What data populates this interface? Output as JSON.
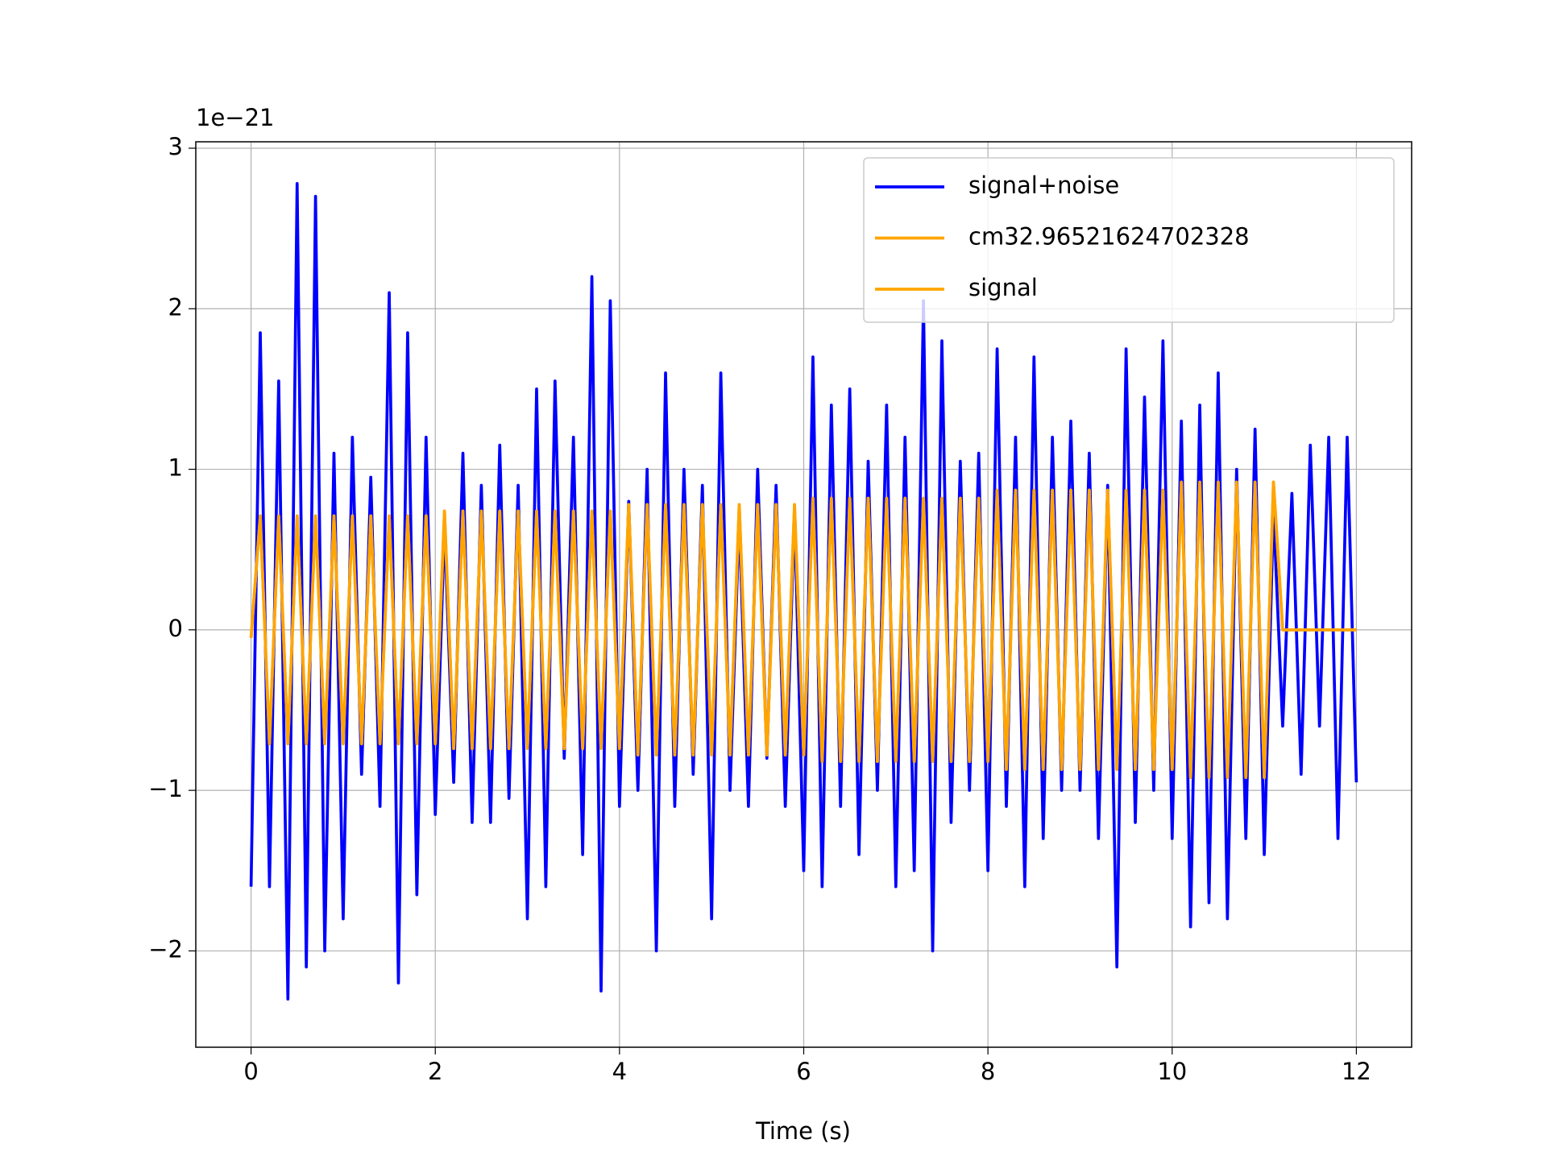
{
  "chart_data": {
    "type": "line",
    "offset_text": "1e−21",
    "xlabel": "Time (s)",
    "x": [
      0,
      0.1,
      0.2,
      0.3,
      0.4,
      0.5,
      0.6,
      0.7,
      0.8,
      0.9,
      1,
      1.1,
      1.2,
      1.3,
      1.4,
      1.5,
      1.6,
      1.7,
      1.8,
      1.9,
      2,
      2.1,
      2.2,
      2.3,
      2.4,
      2.5,
      2.6,
      2.7,
      2.8,
      2.9,
      3,
      3.1,
      3.2,
      3.3,
      3.4,
      3.5,
      3.6,
      3.7,
      3.8,
      3.9,
      4,
      4.1,
      4.2,
      4.3,
      4.4,
      4.5,
      4.6,
      4.7,
      4.8,
      4.9,
      5,
      5.1,
      5.2,
      5.3,
      5.4,
      5.5,
      5.6,
      5.7,
      5.8,
      5.9,
      6,
      6.1,
      6.2,
      6.3,
      6.4,
      6.5,
      6.6,
      6.7,
      6.8,
      6.9,
      7,
      7.1,
      7.2,
      7.3,
      7.4,
      7.5,
      7.6,
      7.7,
      7.8,
      7.9,
      8,
      8.1,
      8.2,
      8.3,
      8.4,
      8.5,
      8.6,
      8.7,
      8.8,
      8.9,
      9,
      9.1,
      9.2,
      9.3,
      9.4,
      9.5,
      9.6,
      9.7,
      9.8,
      9.9,
      10,
      10.1,
      10.2,
      10.3,
      10.4,
      10.5,
      10.6,
      10.7,
      10.8,
      10.9,
      11,
      11.1,
      11.2,
      11.3,
      11.4,
      11.5,
      11.6,
      11.7,
      11.8,
      11.9,
      12
    ],
    "series": [
      {
        "name": "signal+noise",
        "color": "#0000ff",
        "values": [
          -1.6,
          1.85,
          -1.6,
          1.55,
          -2.3,
          2.78,
          -2.1,
          2.7,
          -2.0,
          1.1,
          -1.8,
          1.2,
          -0.9,
          0.95,
          -1.1,
          2.1,
          -2.2,
          1.85,
          -1.65,
          1.2,
          -1.15,
          0.65,
          -0.95,
          1.1,
          -1.2,
          0.9,
          -1.2,
          1.15,
          -1.05,
          0.9,
          -1.8,
          1.5,
          -1.6,
          1.55,
          -0.8,
          1.2,
          -1.4,
          2.2,
          -2.25,
          2.05,
          -1.1,
          0.8,
          -1.0,
          1.0,
          -2.0,
          1.6,
          -1.1,
          1.0,
          -0.9,
          0.9,
          -1.8,
          1.6,
          -1.0,
          0.7,
          -1.1,
          1.0,
          -0.8,
          0.9,
          -1.1,
          0.75,
          -1.5,
          1.7,
          -1.6,
          1.4,
          -1.1,
          1.5,
          -1.4,
          1.05,
          -1.0,
          1.4,
          -1.6,
          1.2,
          -1.5,
          2.05,
          -2.0,
          1.8,
          -1.2,
          1.05,
          -1.0,
          1.1,
          -1.5,
          1.75,
          -1.1,
          1.2,
          -1.6,
          1.7,
          -1.3,
          1.2,
          -1.0,
          1.3,
          -1.0,
          1.1,
          -1.3,
          0.9,
          -2.1,
          1.75,
          -1.2,
          1.45,
          -1.0,
          1.8,
          -1.3,
          1.3,
          -1.85,
          1.4,
          -1.7,
          1.6,
          -1.8,
          1.0,
          -1.3,
          1.25,
          -1.4,
          0.75,
          -0.6,
          0.85,
          -0.9,
          1.15,
          -0.6,
          1.2,
          -1.3,
          1.2,
          -0.95
        ]
      },
      {
        "name": "cm32.96521624702328",
        "color": "#ffa500",
        "values": [
          -0.05,
          0.71,
          -0.71,
          0.71,
          -0.71,
          0.71,
          -0.71,
          0.71,
          -0.71,
          0.71,
          -0.71,
          0.71,
          -0.71,
          0.71,
          -0.71,
          0.71,
          -0.71,
          0.71,
          -0.71,
          0.71,
          -0.71,
          0.74,
          -0.74,
          0.74,
          -0.74,
          0.74,
          -0.74,
          0.74,
          -0.74,
          0.74,
          -0.74,
          0.74,
          -0.74,
          0.74,
          -0.74,
          0.74,
          -0.74,
          0.74,
          -0.74,
          0.74,
          -0.74,
          0.78,
          -0.78,
          0.78,
          -0.78,
          0.78,
          -0.78,
          0.78,
          -0.78,
          0.78,
          -0.78,
          0.78,
          -0.78,
          0.78,
          -0.78,
          0.78,
          -0.78,
          0.78,
          -0.78,
          0.78,
          -0.78,
          0.82,
          -0.82,
          0.82,
          -0.82,
          0.82,
          -0.82,
          0.82,
          -0.82,
          0.82,
          -0.82,
          0.82,
          -0.82,
          0.82,
          -0.82,
          0.82,
          -0.82,
          0.82,
          -0.82,
          0.82,
          -0.82,
          0.87,
          -0.87,
          0.87,
          -0.87,
          0.87,
          -0.87,
          0.87,
          -0.87,
          0.87,
          -0.87,
          0.87,
          -0.87,
          0.87,
          -0.87,
          0.87,
          -0.87,
          0.87,
          -0.87,
          0.87,
          -0.87,
          0.92,
          -0.92,
          0.92,
          -0.92,
          0.92,
          -0.92,
          0.92,
          -0.92,
          0.92,
          -0.92,
          0.92,
          0,
          0,
          0,
          0,
          0,
          0,
          0,
          0,
          0
        ]
      },
      {
        "name": "signal",
        "color": "#ffa500",
        "values": [
          -0.05,
          0.71,
          -0.71,
          0.71,
          -0.71,
          0.71,
          -0.71,
          0.71,
          -0.71,
          0.71,
          -0.71,
          0.71,
          -0.71,
          0.71,
          -0.71,
          0.71,
          -0.71,
          0.71,
          -0.71,
          0.71,
          -0.71,
          0.74,
          -0.74,
          0.74,
          -0.74,
          0.74,
          -0.74,
          0.74,
          -0.74,
          0.74,
          -0.74,
          0.74,
          -0.74,
          0.74,
          -0.74,
          0.74,
          -0.74,
          0.74,
          -0.74,
          0.74,
          -0.74,
          0.78,
          -0.78,
          0.78,
          -0.78,
          0.78,
          -0.78,
          0.78,
          -0.78,
          0.78,
          -0.78,
          0.78,
          -0.78,
          0.78,
          -0.78,
          0.78,
          -0.78,
          0.78,
          -0.78,
          0.78,
          -0.78,
          0.82,
          -0.82,
          0.82,
          -0.82,
          0.82,
          -0.82,
          0.82,
          -0.82,
          0.82,
          -0.82,
          0.82,
          -0.82,
          0.82,
          -0.82,
          0.82,
          -0.82,
          0.82,
          -0.82,
          0.82,
          -0.82,
          0.87,
          -0.87,
          0.87,
          -0.87,
          0.87,
          -0.87,
          0.87,
          -0.87,
          0.87,
          -0.87,
          0.87,
          -0.87,
          0.87,
          -0.87,
          0.87,
          -0.87,
          0.87,
          -0.87,
          0.87,
          -0.87,
          0.92,
          -0.92,
          0.92,
          -0.92,
          0.92,
          -0.92,
          0.92,
          -0.92,
          0.92,
          -0.92,
          0.92,
          0,
          0,
          0,
          0,
          0,
          0,
          0,
          0,
          0
        ]
      }
    ],
    "xlim": [
      -0.6,
      12.6
    ],
    "xticks": [
      0,
      2,
      4,
      6,
      8,
      10,
      12
    ],
    "ylim": [
      -2.6,
      3.04
    ],
    "yticks": [
      {
        "value": -2,
        "label": "−2"
      },
      {
        "value": -1,
        "label": "−1"
      },
      0,
      1,
      2,
      3
    ],
    "grid": true,
    "legend": "upper right"
  }
}
